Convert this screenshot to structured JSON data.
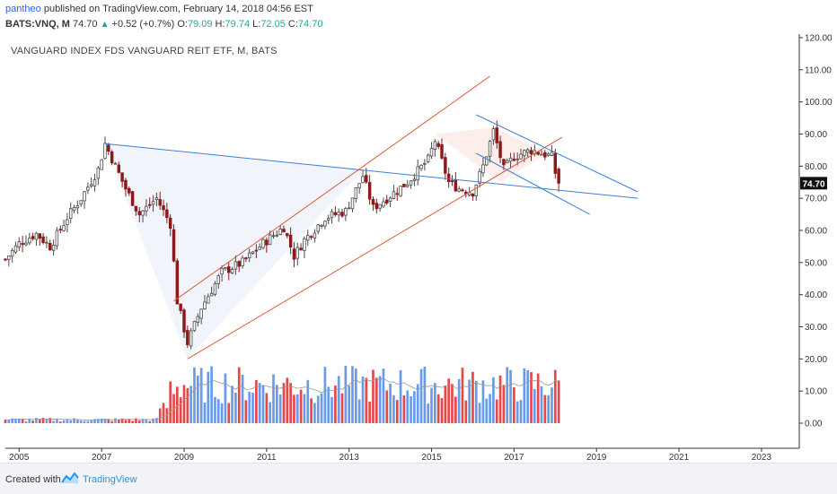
{
  "header": {
    "author": "pantheo",
    "published_text": "published on TradingView.com, February 14, 2018 04:56 EST",
    "symbol": "BATS:VNQ, M",
    "last": "74.70",
    "change_arrow": "▲",
    "change": "+0.52 (+0.7%)",
    "o_label": "O:",
    "o_value": "79.09",
    "h_label": "H:",
    "h_value": "79.74",
    "l_label": "L:",
    "l_value": "72.05",
    "c_label": "C:",
    "c_value": "74.70"
  },
  "chart_title": "VANGUARD INDEX FDS VANGUARD REIT ETF, M, BATS",
  "last_price_label": "74.70",
  "footer": {
    "created_with": "Created with",
    "brand": "TradingView"
  },
  "colors": {
    "up": "#4a4a4a",
    "down": "#8b1a1a",
    "volume_up": "#6a9bea",
    "volume_down": "#e54848",
    "channel": "#e0583c",
    "trend": "#3f7fd6",
    "sma": "#999999"
  },
  "chart_data": {
    "type": "candlestick",
    "interval": "monthly",
    "x_range": [
      "2004-09",
      "2023-12"
    ],
    "y_range": [
      -6,
      120
    ],
    "x_ticks": [
      "2005",
      "2007",
      "2009",
      "2011",
      "2013",
      "2015",
      "2017",
      "2019",
      "2021",
      "2023"
    ],
    "y_ticks": [
      "0.00",
      "10.00",
      "20.00",
      "30.00",
      "40.00",
      "50.00",
      "60.00",
      "70.00",
      "80.00",
      "90.00",
      "100.00",
      "110.00",
      "120.00"
    ],
    "price_anchors": [
      [
        "2004-09",
        51
      ],
      [
        "2005-01",
        56
      ],
      [
        "2005-06",
        59
      ],
      [
        "2005-10",
        55
      ],
      [
        "2006-03",
        64
      ],
      [
        "2006-07",
        70
      ],
      [
        "2006-12",
        79
      ],
      [
        "2007-02",
        87
      ],
      [
        "2007-05",
        80
      ],
      [
        "2007-08",
        73
      ],
      [
        "2007-12",
        65
      ],
      [
        "2008-05",
        70
      ],
      [
        "2008-09",
        62
      ],
      [
        "2008-11",
        38
      ],
      [
        "2009-02",
        25
      ],
      [
        "2009-06",
        36
      ],
      [
        "2009-12",
        47
      ],
      [
        "2010-06",
        50
      ],
      [
        "2010-12",
        56
      ],
      [
        "2011-06",
        61
      ],
      [
        "2011-09",
        52
      ],
      [
        "2011-12",
        57
      ],
      [
        "2012-06",
        64
      ],
      [
        "2012-12",
        66
      ],
      [
        "2013-05",
        77
      ],
      [
        "2013-08",
        67
      ],
      [
        "2013-12",
        70
      ],
      [
        "2014-06",
        75
      ],
      [
        "2014-12",
        82
      ],
      [
        "2015-02",
        88
      ],
      [
        "2015-06",
        75
      ],
      [
        "2015-09",
        73
      ],
      [
        "2016-01",
        72
      ],
      [
        "2016-04",
        80
      ],
      [
        "2016-07",
        91
      ],
      [
        "2016-10",
        79
      ],
      [
        "2017-01",
        83
      ],
      [
        "2017-06",
        85
      ],
      [
        "2017-12",
        83
      ],
      [
        "2018-01",
        78
      ],
      [
        "2018-02",
        74.7
      ]
    ],
    "volume_axis_label_range": "0.00 - 20.00",
    "annotations": [
      {
        "kind": "channel",
        "color": "channel"
      },
      {
        "kind": "channel",
        "color": "channel"
      },
      {
        "kind": "trendline",
        "color": "trend"
      },
      {
        "kind": "trendline",
        "color": "trend"
      },
      {
        "kind": "trendline",
        "color": "trend"
      }
    ]
  }
}
